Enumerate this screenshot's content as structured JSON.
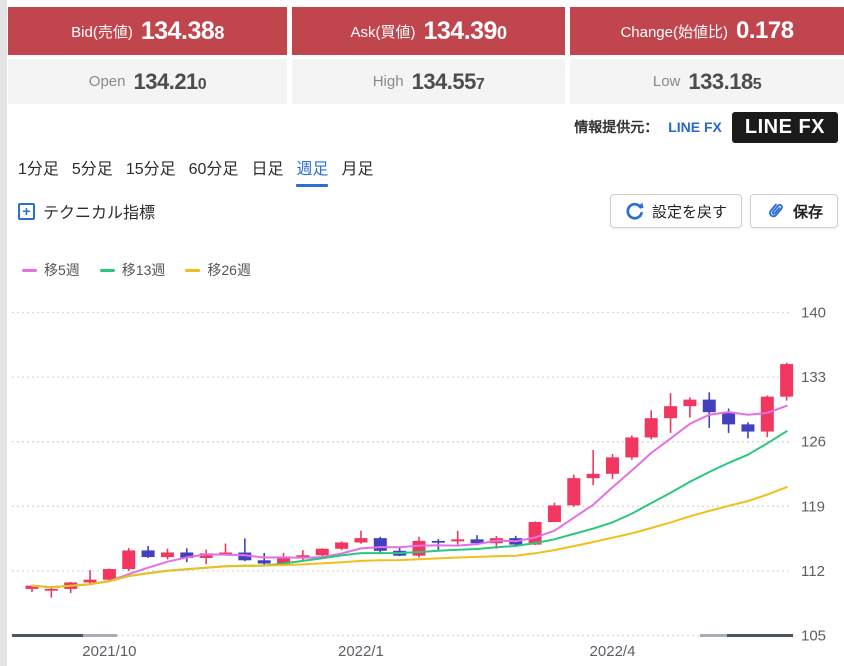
{
  "quotes": {
    "bid": {
      "label": "Bid(売値)",
      "main": "134.38",
      "pip": "8"
    },
    "ask": {
      "label": "Ask(買値)",
      "main": "134.39",
      "pip": "0"
    },
    "change": {
      "label": "Change(始値比)",
      "value": "0.178"
    },
    "open": {
      "label": "Open",
      "main": "134.21",
      "pip": "0"
    },
    "high": {
      "label": "High",
      "main": "134.55",
      "pip": "7"
    },
    "low": {
      "label": "Low",
      "main": "133.18",
      "pip": "5"
    }
  },
  "provider": {
    "prefix": "情報提供元：",
    "link": "LINE FX",
    "logo_line": "LINE",
    "logo_fx": "FX"
  },
  "timeframes": {
    "items": [
      "1分足",
      "5分足",
      "15分足",
      "60分足",
      "日足",
      "週足",
      "月足"
    ],
    "active": "週足"
  },
  "toolbar": {
    "technical_label": "テクニカル指標",
    "plus_glyph": "+",
    "reset_label": "設定を戻す",
    "save_label": "保存"
  },
  "chart_data": {
    "type": "candlestick",
    "timeframe": "週足",
    "ylim": [
      105,
      140
    ],
    "y_ticks": [
      140,
      133,
      126,
      119,
      112,
      105
    ],
    "x_ticks": [
      {
        "label": "2021/10",
        "index": 4
      },
      {
        "label": "2022/1",
        "index": 17
      },
      {
        "label": "2022/4",
        "index": 30
      }
    ],
    "grid": "dashed-horizontal",
    "legend_position": "top-left",
    "up_color": "#f1365f",
    "down_color": "#4340bf",
    "candles_ohlc": [
      [
        110.05,
        110.45,
        109.7,
        110.4
      ],
      [
        109.9,
        110.3,
        109.1,
        110.05
      ],
      [
        110.05,
        110.8,
        109.6,
        110.75
      ],
      [
        110.75,
        112.08,
        110.55,
        111.05
      ],
      [
        111.05,
        112.25,
        110.82,
        112.2
      ],
      [
        112.2,
        114.47,
        112.0,
        114.22
      ],
      [
        114.22,
        114.7,
        113.4,
        113.5
      ],
      [
        113.5,
        114.4,
        113.25,
        114.0
      ],
      [
        114.0,
        114.45,
        112.95,
        113.4
      ],
      [
        113.4,
        114.3,
        112.73,
        113.9
      ],
      [
        113.9,
        114.97,
        113.75,
        113.99
      ],
      [
        113.99,
        115.52,
        113.05,
        113.15
      ],
      [
        113.15,
        113.95,
        112.53,
        112.8
      ],
      [
        112.8,
        113.95,
        112.55,
        113.45
      ],
      [
        113.45,
        114.25,
        113.15,
        113.7
      ],
      [
        113.7,
        114.45,
        113.45,
        114.4
      ],
      [
        114.4,
        115.2,
        114.25,
        115.08
      ],
      [
        115.08,
        116.35,
        114.95,
        115.55
      ],
      [
        115.55,
        115.7,
        113.9,
        114.18
      ],
      [
        114.18,
        114.65,
        113.6,
        113.65
      ],
      [
        113.65,
        115.7,
        113.45,
        115.25
      ],
      [
        115.25,
        115.45,
        114.15,
        115.2
      ],
      [
        115.2,
        116.34,
        114.85,
        115.42
      ],
      [
        115.42,
        115.87,
        114.78,
        115.0
      ],
      [
        115.0,
        115.78,
        114.4,
        115.55
      ],
      [
        115.55,
        115.8,
        114.65,
        114.85
      ],
      [
        114.85,
        117.36,
        114.8,
        117.3
      ],
      [
        117.3,
        119.4,
        117.28,
        119.1
      ],
      [
        119.1,
        122.43,
        118.95,
        122.05
      ],
      [
        122.05,
        125.1,
        121.3,
        122.52
      ],
      [
        122.52,
        124.67,
        121.95,
        124.3
      ],
      [
        124.3,
        126.68,
        124.05,
        126.46
      ],
      [
        126.46,
        129.4,
        126.25,
        128.55
      ],
      [
        128.55,
        131.25,
        126.95,
        129.85
      ],
      [
        129.85,
        130.8,
        128.62,
        130.56
      ],
      [
        130.56,
        131.35,
        127.5,
        129.2
      ],
      [
        129.2,
        129.6,
        126.95,
        127.88
      ],
      [
        127.88,
        128.1,
        126.36,
        127.1
      ],
      [
        127.1,
        131.0,
        126.5,
        130.88
      ],
      [
        130.88,
        134.56,
        130.45,
        134.41
      ]
    ],
    "ma_series": [
      {
        "name": "移5週",
        "window": 5,
        "color": "#e570e5"
      },
      {
        "name": "移13週",
        "window": 13,
        "color": "#2bc77d"
      },
      {
        "name": "移26週",
        "window": 26,
        "color": "#f0bf1c"
      }
    ]
  }
}
